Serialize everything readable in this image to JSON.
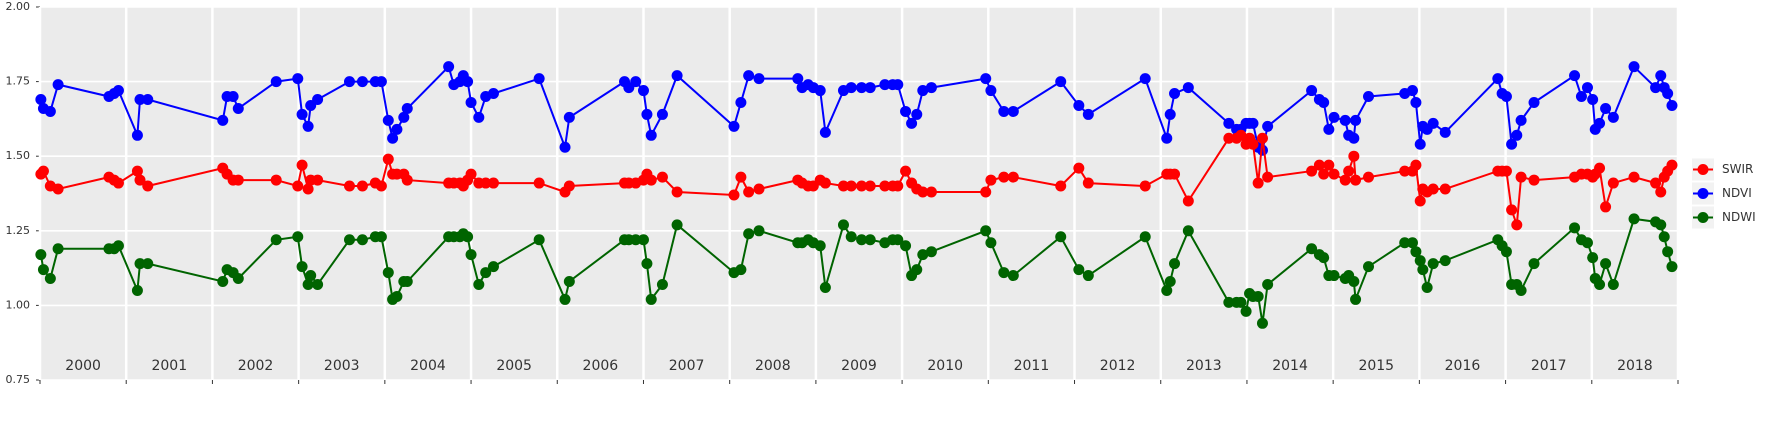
{
  "chart_data": {
    "type": "line",
    "x": [
      2000.01,
      2000.04,
      2000.12,
      2000.21,
      2000.8,
      2000.86,
      2000.91,
      2001.13,
      2001.16,
      2001.25,
      2002.12,
      2002.17,
      2002.24,
      2002.3,
      2002.74,
      2002.99,
      2003.04,
      2003.11,
      2003.14,
      2003.22,
      2003.59,
      2003.74,
      2003.89,
      2003.96,
      2004.04,
      2004.09,
      2004.14,
      2004.22,
      2004.26,
      2004.74,
      2004.8,
      2004.87,
      2004.91,
      2004.96,
      2005.0,
      2005.09,
      2005.17,
      2005.26,
      2005.79,
      2006.09,
      2006.14,
      2006.78,
      2006.83,
      2006.91,
      2007.0,
      2007.04,
      2007.09,
      2007.22,
      2007.39,
      2008.05,
      2008.13,
      2008.22,
      2008.34,
      2008.79,
      2008.84,
      2008.91,
      2008.97,
      2009.05,
      2009.11,
      2009.32,
      2009.41,
      2009.53,
      2009.63,
      2009.8,
      2009.89,
      2009.95,
      2010.04,
      2010.11,
      2010.17,
      2010.24,
      2010.34,
      2010.97,
      2011.03,
      2011.18,
      2011.29,
      2011.84,
      2012.05,
      2012.16,
      2012.82,
      2013.07,
      2013.11,
      2013.16,
      2013.32,
      2013.79,
      2013.88,
      2013.93,
      2013.99,
      2014.03,
      2014.07,
      2014.13,
      2014.18,
      2014.24,
      2014.75,
      2014.84,
      2014.89,
      2014.95,
      2015.01,
      2015.14,
      2015.18,
      2015.24,
      2015.26,
      2015.41,
      2015.83,
      2015.92,
      2015.96,
      2016.01,
      2016.04,
      2016.09,
      2016.16,
      2016.3,
      2016.91,
      2016.96,
      2017.01,
      2017.07,
      2017.13,
      2017.18,
      2017.33,
      2017.8,
      2017.88,
      2017.95,
      2018.01,
      2018.04,
      2018.09,
      2018.16,
      2018.25,
      2018.49,
      2018.74,
      2018.8,
      2018.84,
      2018.88,
      2018.93
    ],
    "series": [
      {
        "name": "SWIR",
        "color": "#ff0000",
        "values": [
          1.44,
          1.45,
          1.4,
          1.39,
          1.43,
          1.42,
          1.41,
          1.45,
          1.42,
          1.4,
          1.46,
          1.44,
          1.42,
          1.42,
          1.42,
          1.4,
          1.47,
          1.39,
          1.42,
          1.42,
          1.4,
          1.4,
          1.41,
          1.4,
          1.49,
          1.44,
          1.44,
          1.44,
          1.42,
          1.41,
          1.41,
          1.41,
          1.4,
          1.42,
          1.44,
          1.41,
          1.41,
          1.41,
          1.41,
          1.38,
          1.4,
          1.41,
          1.41,
          1.41,
          1.42,
          1.44,
          1.42,
          1.43,
          1.38,
          1.37,
          1.43,
          1.38,
          1.39,
          1.42,
          1.41,
          1.4,
          1.4,
          1.42,
          1.41,
          1.4,
          1.4,
          1.4,
          1.4,
          1.4,
          1.4,
          1.4,
          1.45,
          1.41,
          1.39,
          1.38,
          1.38,
          1.38,
          1.42,
          1.43,
          1.43,
          1.4,
          1.46,
          1.41,
          1.4,
          1.44,
          1.44,
          1.44,
          1.35,
          1.56,
          1.56,
          1.57,
          1.54,
          1.56,
          1.54,
          1.41,
          1.56,
          1.43,
          1.45,
          1.47,
          1.44,
          1.47,
          1.44,
          1.42,
          1.45,
          1.5,
          1.42,
          1.43,
          1.45,
          1.45,
          1.47,
          1.35,
          1.39,
          1.38,
          1.39,
          1.39,
          1.45,
          1.45,
          1.45,
          1.32,
          1.27,
          1.43,
          1.42,
          1.43,
          1.44,
          1.44,
          1.43,
          1.44,
          1.46,
          1.33,
          1.41,
          1.43,
          1.41,
          1.38,
          1.43,
          1.45,
          1.47
        ]
      },
      {
        "name": "NDVI",
        "color": "#0000ff",
        "values": [
          1.69,
          1.66,
          1.65,
          1.74,
          1.7,
          1.71,
          1.72,
          1.57,
          1.69,
          1.69,
          1.62,
          1.7,
          1.7,
          1.66,
          1.75,
          1.76,
          1.64,
          1.6,
          1.67,
          1.69,
          1.75,
          1.75,
          1.75,
          1.75,
          1.62,
          1.56,
          1.59,
          1.63,
          1.66,
          1.8,
          1.74,
          1.75,
          1.77,
          1.75,
          1.68,
          1.63,
          1.7,
          1.71,
          1.76,
          1.53,
          1.63,
          1.75,
          1.73,
          1.75,
          1.72,
          1.64,
          1.57,
          1.64,
          1.77,
          1.6,
          1.68,
          1.77,
          1.76,
          1.76,
          1.73,
          1.74,
          1.73,
          1.72,
          1.58,
          1.72,
          1.73,
          1.73,
          1.73,
          1.74,
          1.74,
          1.74,
          1.65,
          1.61,
          1.64,
          1.72,
          1.73,
          1.76,
          1.72,
          1.65,
          1.65,
          1.75,
          1.67,
          1.64,
          1.76,
          1.56,
          1.64,
          1.71,
          1.73,
          1.61,
          1.59,
          1.59,
          1.61,
          1.61,
          1.61,
          1.53,
          1.52,
          1.6,
          1.72,
          1.69,
          1.68,
          1.59,
          1.63,
          1.62,
          1.57,
          1.56,
          1.62,
          1.7,
          1.71,
          1.72,
          1.68,
          1.54,
          1.6,
          1.59,
          1.61,
          1.58,
          1.76,
          1.71,
          1.7,
          1.54,
          1.57,
          1.62,
          1.68,
          1.77,
          1.7,
          1.73,
          1.69,
          1.59,
          1.61,
          1.66,
          1.63,
          1.8,
          1.73,
          1.77,
          1.73,
          1.71,
          1.67
        ]
      },
      {
        "name": "NDWI",
        "color": "#006400",
        "values": [
          1.17,
          1.12,
          1.09,
          1.19,
          1.19,
          1.19,
          1.2,
          1.05,
          1.14,
          1.14,
          1.08,
          1.12,
          1.11,
          1.09,
          1.22,
          1.23,
          1.13,
          1.07,
          1.1,
          1.07,
          1.22,
          1.22,
          1.23,
          1.23,
          1.11,
          1.02,
          1.03,
          1.08,
          1.08,
          1.23,
          1.23,
          1.23,
          1.24,
          1.23,
          1.17,
          1.07,
          1.11,
          1.13,
          1.22,
          1.02,
          1.08,
          1.22,
          1.22,
          1.22,
          1.22,
          1.14,
          1.02,
          1.07,
          1.27,
          1.11,
          1.12,
          1.24,
          1.25,
          1.21,
          1.21,
          1.22,
          1.21,
          1.2,
          1.06,
          1.27,
          1.23,
          1.22,
          1.22,
          1.21,
          1.22,
          1.22,
          1.2,
          1.1,
          1.12,
          1.17,
          1.18,
          1.25,
          1.21,
          1.11,
          1.1,
          1.23,
          1.12,
          1.1,
          1.23,
          1.05,
          1.08,
          1.14,
          1.25,
          1.01,
          1.01,
          1.01,
          0.98,
          1.04,
          1.03,
          1.03,
          0.94,
          1.07,
          1.19,
          1.17,
          1.16,
          1.1,
          1.1,
          1.09,
          1.1,
          1.08,
          1.02,
          1.13,
          1.21,
          1.21,
          1.18,
          1.15,
          1.12,
          1.06,
          1.14,
          1.15,
          1.22,
          1.2,
          1.18,
          1.07,
          1.07,
          1.05,
          1.14,
          1.26,
          1.22,
          1.21,
          1.16,
          1.09,
          1.07,
          1.14,
          1.07,
          1.29,
          1.28,
          1.27,
          1.23,
          1.18,
          1.13
        ]
      }
    ],
    "xlim": [
      2000,
      2019
    ],
    "xticks": [
      {
        "value": 2000,
        "label": "2000"
      },
      {
        "value": 2001,
        "label": "2001"
      },
      {
        "value": 2002,
        "label": "2002"
      },
      {
        "value": 2003,
        "label": "2003"
      },
      {
        "value": 2004,
        "label": "2004"
      },
      {
        "value": 2005,
        "label": "2005"
      },
      {
        "value": 2006,
        "label": "2006"
      },
      {
        "value": 2007,
        "label": "2007"
      },
      {
        "value": 2008,
        "label": "2008"
      },
      {
        "value": 2009,
        "label": "2009"
      },
      {
        "value": 2010,
        "label": "2010"
      },
      {
        "value": 2011,
        "label": "2011"
      },
      {
        "value": 2012,
        "label": "2012"
      },
      {
        "value": 2013,
        "label": "2013"
      },
      {
        "value": 2014,
        "label": "2014"
      },
      {
        "value": 2015,
        "label": "2015"
      },
      {
        "value": 2016,
        "label": "2016"
      },
      {
        "value": 2017,
        "label": "2017"
      },
      {
        "value": 2018,
        "label": "2018"
      },
      {
        "value": 2019,
        "label": null
      }
    ],
    "ylim": [
      0.75,
      2
    ],
    "yticks": [
      0.75,
      {
        "value": 1,
        "label": "1.00"
      },
      1.25,
      {
        "value": 1.5,
        "label": "1.50"
      },
      1.75,
      {
        "value": 2,
        "label": "2.00"
      }
    ],
    "grid": true,
    "legend": "right"
  }
}
